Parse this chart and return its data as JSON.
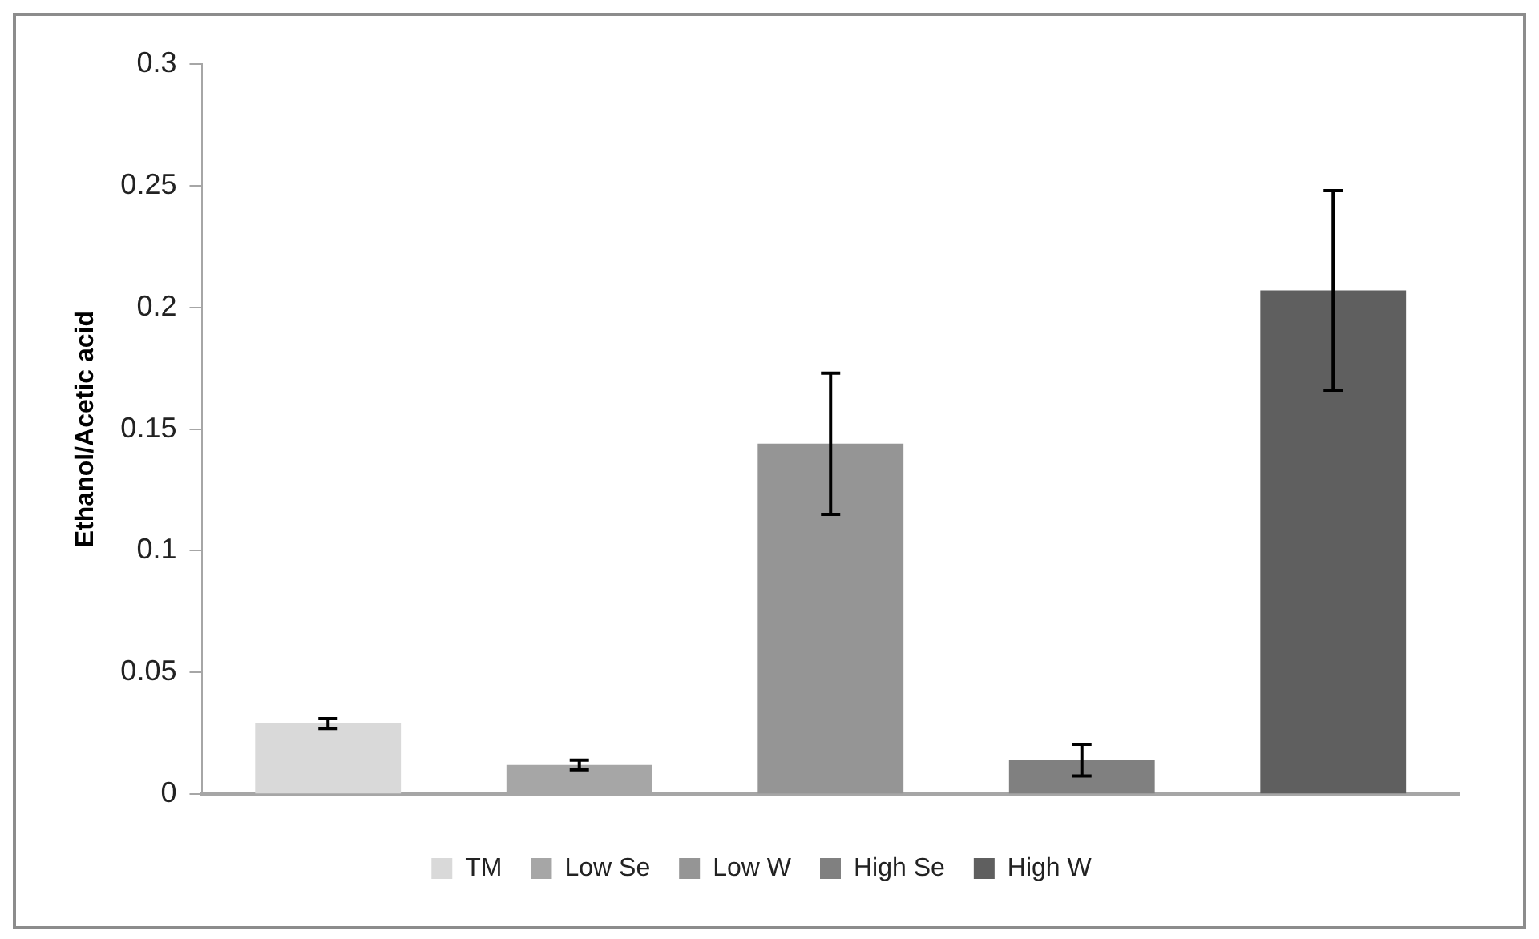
{
  "chart_data": {
    "type": "bar",
    "ylabel": "Ethanol/Acetic acid",
    "categories": [
      null,
      null,
      null,
      null,
      null
    ],
    "series": [
      {
        "name": "TM",
        "color": "#d9d9d9",
        "values": [
          0.029,
          null,
          null,
          null,
          null
        ],
        "errors": [
          0.002,
          null,
          null,
          null,
          null
        ]
      },
      {
        "name": "Low Se",
        "color": "#a6a6a6",
        "values": [
          null,
          0.012,
          null,
          null,
          null
        ],
        "errors": [
          null,
          0.002,
          null,
          null,
          null
        ]
      },
      {
        "name": "Low W",
        "color": "#959595",
        "values": [
          null,
          null,
          0.144,
          null,
          null
        ],
        "errors": [
          null,
          null,
          0.029,
          null,
          null
        ]
      },
      {
        "name": "High Se",
        "color": "#808080",
        "values": [
          null,
          null,
          null,
          0.014,
          null
        ],
        "errors": [
          null,
          null,
          null,
          0.0065,
          null
        ]
      },
      {
        "name": "High W",
        "color": "#5f5f5f",
        "values": [
          null,
          null,
          null,
          null,
          0.207
        ],
        "errors": [
          null,
          null,
          null,
          null,
          0.041
        ]
      }
    ],
    "ylim": [
      0,
      0.3
    ],
    "yticks": [
      0,
      0.05,
      0.1,
      0.15,
      0.2,
      0.25,
      0.3
    ],
    "grid": false,
    "legend": "bottom"
  }
}
